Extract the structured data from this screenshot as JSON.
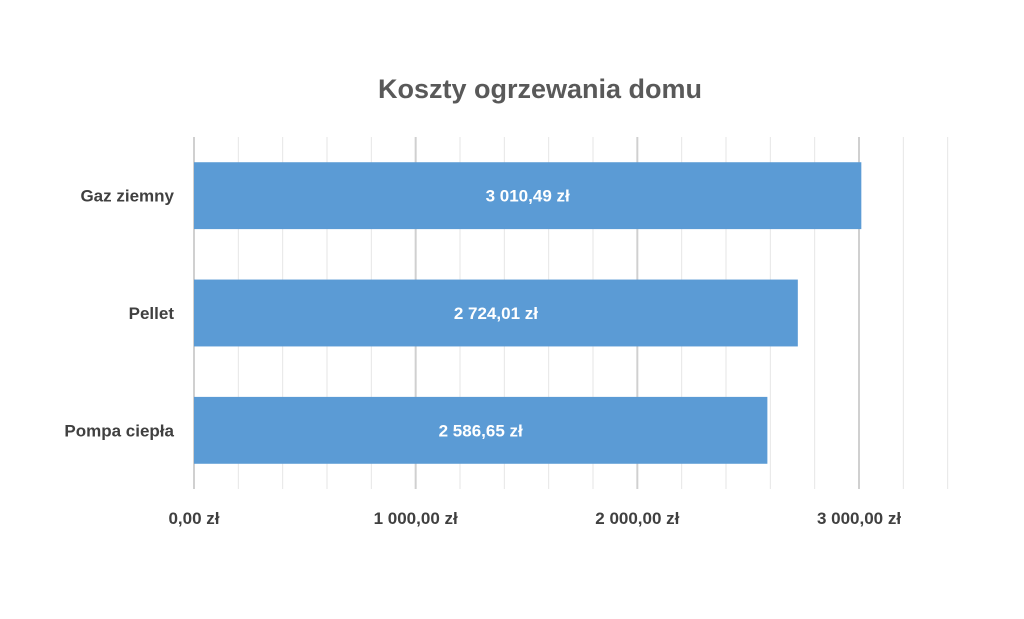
{
  "chart_data": {
    "type": "bar",
    "orientation": "horizontal",
    "title": "Koszty ogrzewania domu",
    "categories": [
      "Gaz ziemny",
      "Pellet",
      "Pompa ciepła"
    ],
    "values": [
      3010.49,
      2724.01,
      2586.65
    ],
    "data_labels": [
      "3 010,49 zł",
      "2 724,01 zł",
      "2 586,65 zł"
    ],
    "xlim": [
      0,
      3500
    ],
    "x_ticks": [
      0,
      1000,
      2000,
      3000
    ],
    "x_tick_labels": [
      "0,00 zł",
      "1 000,00 zł",
      "2 000,00 zł",
      "3 000,00 zł"
    ],
    "minor_step": 200,
    "grid": true,
    "legend": "none",
    "bar_color": "#5B9BD5"
  }
}
